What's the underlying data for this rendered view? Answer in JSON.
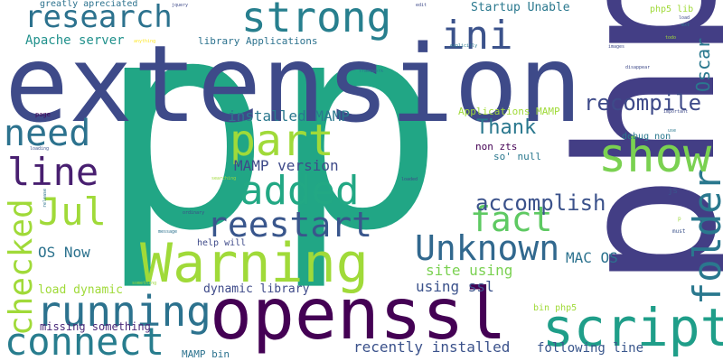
{
  "colors": {
    "background": "#ffffff",
    "palette": [
      "#440154",
      "#46327e",
      "#365c8d",
      "#277f8e",
      "#1fa187",
      "#4ac16d",
      "#a0da39",
      "#fde725"
    ]
  },
  "words": [
    {
      "text": "p",
      "color": "#21a685"
    },
    {
      "text": "p",
      "color": "#21a685"
    },
    {
      "text": "extension",
      "color": "#3e4a89"
    },
    {
      "text": "php",
      "color": "#433e85"
    },
    {
      "text": "openssl",
      "color": "#440154"
    },
    {
      "text": "Warning",
      "color": "#a0da39"
    },
    {
      "text": "strong",
      "color": "#277f8e"
    },
    {
      "text": "research",
      "color": "#2c728e"
    },
    {
      "text": "ini",
      "color": "#3b528b"
    },
    {
      "text": "folder",
      "color": "#2a788e"
    },
    {
      "text": "script",
      "color": "#1f9e89"
    },
    {
      "text": "running",
      "color": "#2c728e"
    },
    {
      "text": "connect",
      "color": "#287d8e"
    },
    {
      "text": "show",
      "color": "#7ad151"
    },
    {
      "text": "part",
      "color": "#a0da39"
    },
    {
      "text": "added",
      "color": "#22a884"
    },
    {
      "text": "reestart",
      "color": "#39568c"
    },
    {
      "text": "Unknown",
      "color": "#31688e"
    },
    {
      "text": "need",
      "color": "#2c728e"
    },
    {
      "text": "line",
      "color": "#481f70"
    },
    {
      "text": "Jul",
      "color": "#a0da39"
    },
    {
      "text": "fact",
      "color": "#5ec962"
    },
    {
      "text": "checked",
      "color": "#a0da39"
    },
    {
      "text": "accomplish",
      "color": "#3b528b"
    },
    {
      "text": "recompile",
      "color": "#3e4a89"
    },
    {
      "text": "Oscar",
      "color": "#2a788e"
    },
    {
      "text": "Thank",
      "color": "#2a788e"
    },
    {
      "text": "MAMP version",
      "color": "#3e4a89"
    },
    {
      "text": "installed MAMP",
      "color": "#2a788e"
    },
    {
      "text": "OS Now",
      "color": "#2c728e"
    },
    {
      "text": "MAC OS",
      "color": "#2c728e"
    },
    {
      "text": "site using",
      "color": "#7ad151"
    },
    {
      "text": "using ssl",
      "color": "#3b528b"
    },
    {
      "text": "recently installed",
      "color": "#3b528b"
    },
    {
      "text": "following line",
      "color": "#39568c"
    },
    {
      "text": "Apache server",
      "color": "#21918c"
    },
    {
      "text": "dynamic library",
      "color": "#3e4a89"
    },
    {
      "text": "load dynamic",
      "color": "#a0da39"
    },
    {
      "text": "missing something",
      "color": "#482878"
    },
    {
      "text": "Startup Unable",
      "color": "#2a788e"
    },
    {
      "text": "library Applications",
      "color": "#2c728e"
    },
    {
      "text": "Applications MAMP",
      "color": "#a0da39"
    },
    {
      "text": "greatly apreciated",
      "color": "#2c728e"
    },
    {
      "text": "non zts",
      "color": "#440154"
    },
    {
      "text": "so' null",
      "color": "#2a788e"
    },
    {
      "text": "debug non",
      "color": "#2a788e"
    },
    {
      "text": "php5 lib",
      "color": "#a0da39"
    },
    {
      "text": "help will",
      "color": "#3e4a89"
    },
    {
      "text": "bin php5",
      "color": "#a0da39"
    },
    {
      "text": "MAMP bin",
      "color": "#2c728e"
    },
    {
      "text": "js",
      "color": "#39568c"
    },
    {
      "text": "p",
      "color": "#9dd93b"
    },
    {
      "text": "must",
      "color": "#3b528b"
    },
    {
      "text": "page",
      "color": "#440154"
    },
    {
      "text": "loading",
      "color": "#3b528b"
    },
    {
      "text": "jquery",
      "color": "#3e4a89"
    },
    {
      "text": "edit",
      "color": "#3e4a89"
    },
    {
      "text": "load",
      "color": "#3e4a89"
    },
    {
      "text": "ext",
      "color": "#2a788e"
    },
    {
      "text": "images",
      "color": "#3e4a89"
    },
    {
      "text": "disappear",
      "color": "#3e4a89"
    },
    {
      "text": "framework",
      "color": "#2a788e"
    },
    {
      "text": "important",
      "color": "#3e4a89"
    },
    {
      "text": "use",
      "color": "#2a788e"
    },
    {
      "text": "searching",
      "color": "#a0da39"
    },
    {
      "text": "loaded",
      "color": "#3e4a89"
    },
    {
      "text": "ordinary",
      "color": "#3e4a89"
    },
    {
      "text": "message",
      "color": "#2c728e"
    },
    {
      "text": "something",
      "color": "#a0da39"
    },
    {
      "text": "release",
      "color": "#2c728e"
    },
    {
      "text": "anything",
      "color": "#fde725"
    },
    {
      "text": "explicitly",
      "color": "#2a788e"
    },
    {
      "text": "todo",
      "color": "#a0da39"
    }
  ]
}
